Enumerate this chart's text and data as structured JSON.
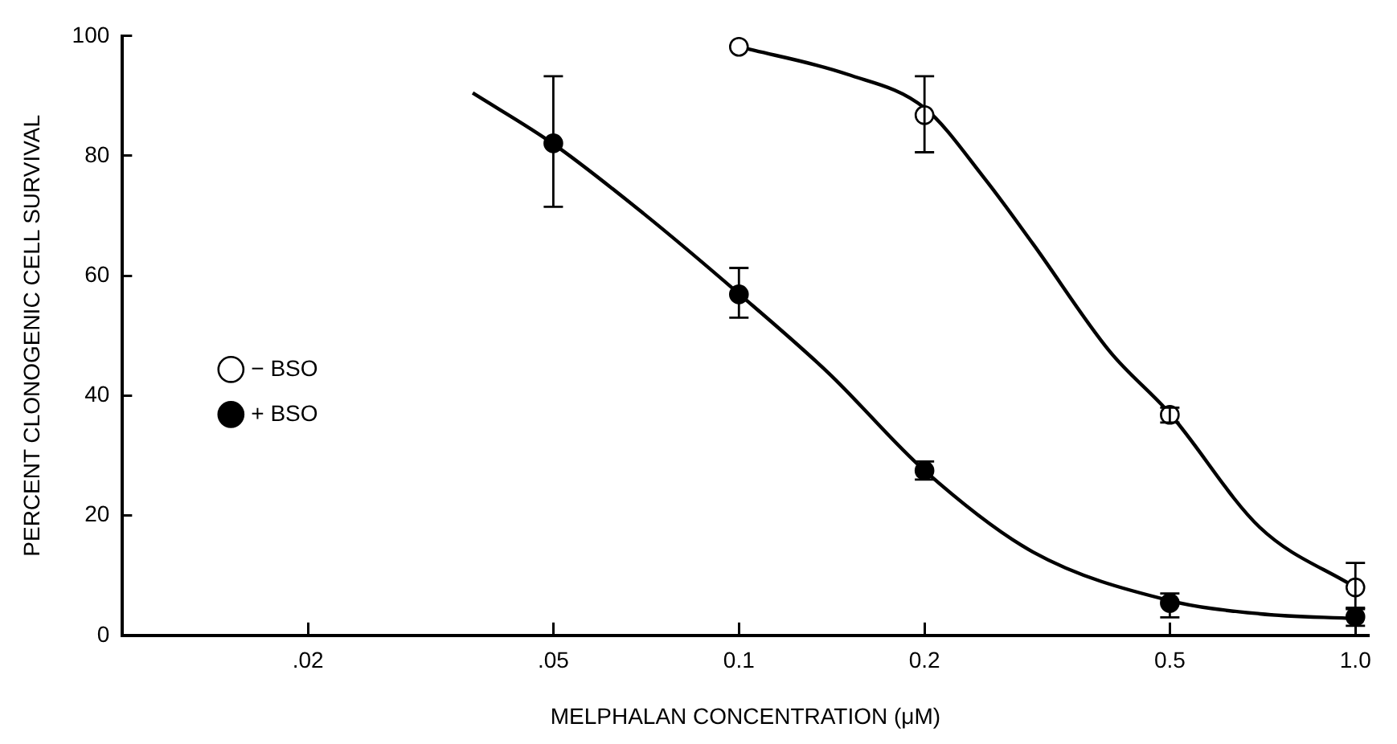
{
  "chart_data": {
    "type": "scatter",
    "xlabel": "MELPHALAN CONCENTRATION (μM)",
    "ylabel": "PERCENT CLONOGENIC CELL SURVIVAL",
    "log": "x",
    "xlim": [
      0.01,
      1.05
    ],
    "xticks": [
      {
        "value": 0.02,
        "label": ".02"
      },
      {
        "value": 0.05,
        "label": ".05"
      },
      {
        "value": 0.1,
        "label": "0.1"
      },
      {
        "value": 0.2,
        "label": "0.2"
      },
      {
        "value": 0.5,
        "label": "0.5"
      },
      {
        "value": 1,
        "label": "1.0"
      }
    ],
    "ylim": [
      0,
      100
    ],
    "yticks": [
      0,
      20,
      40,
      60,
      80,
      100
    ],
    "grid": false,
    "legend": "left",
    "marker": "circle",
    "series": [
      {
        "name": "− BSO",
        "type": "scatter",
        "color": "#ffffff",
        "x": [
          0.1,
          0.2,
          0.5,
          1.0
        ],
        "values": [
          98.2,
          86.8,
          36.8,
          8.0
        ],
        "errors": [
          null,
          [
            80.6,
            93.3
          ],
          [
            35.5,
            38
          ],
          [
            4.4,
            12.1
          ]
        ]
      },
      {
        "name": "+ BSO",
        "type": "scatter",
        "color": "#000000",
        "x": [
          0.05,
          0.1,
          0.2,
          0.5,
          1.0
        ],
        "values": [
          82.1,
          56.9,
          27.5,
          5.4,
          3.1
        ],
        "errors": [
          [
            71.5,
            93.3
          ],
          [
            53,
            61.3
          ],
          [
            26,
            29
          ],
          [
            3,
            7
          ],
          [
            1.6,
            4.6
          ]
        ]
      },
      {
        "type": "line",
        "color": "#000000",
        "marker": "none",
        "x": [
          0.1,
          0.15,
          0.2,
          0.25,
          0.3,
          0.4,
          0.5,
          0.7,
          1.0
        ],
        "values": [
          98.2,
          93.6,
          88,
          76.3,
          65.3,
          47.3,
          37,
          18,
          8
        ]
      },
      {
        "type": "line",
        "color": "#000000",
        "marker": "none",
        "x": [
          0.037,
          0.05,
          0.07,
          0.1,
          0.14,
          0.2,
          0.3,
          0.5,
          0.7,
          1.0
        ],
        "values": [
          90.5,
          82,
          70.4,
          57,
          43.7,
          27.5,
          13.9,
          5.8,
          3.6,
          2.8
        ]
      }
    ]
  }
}
